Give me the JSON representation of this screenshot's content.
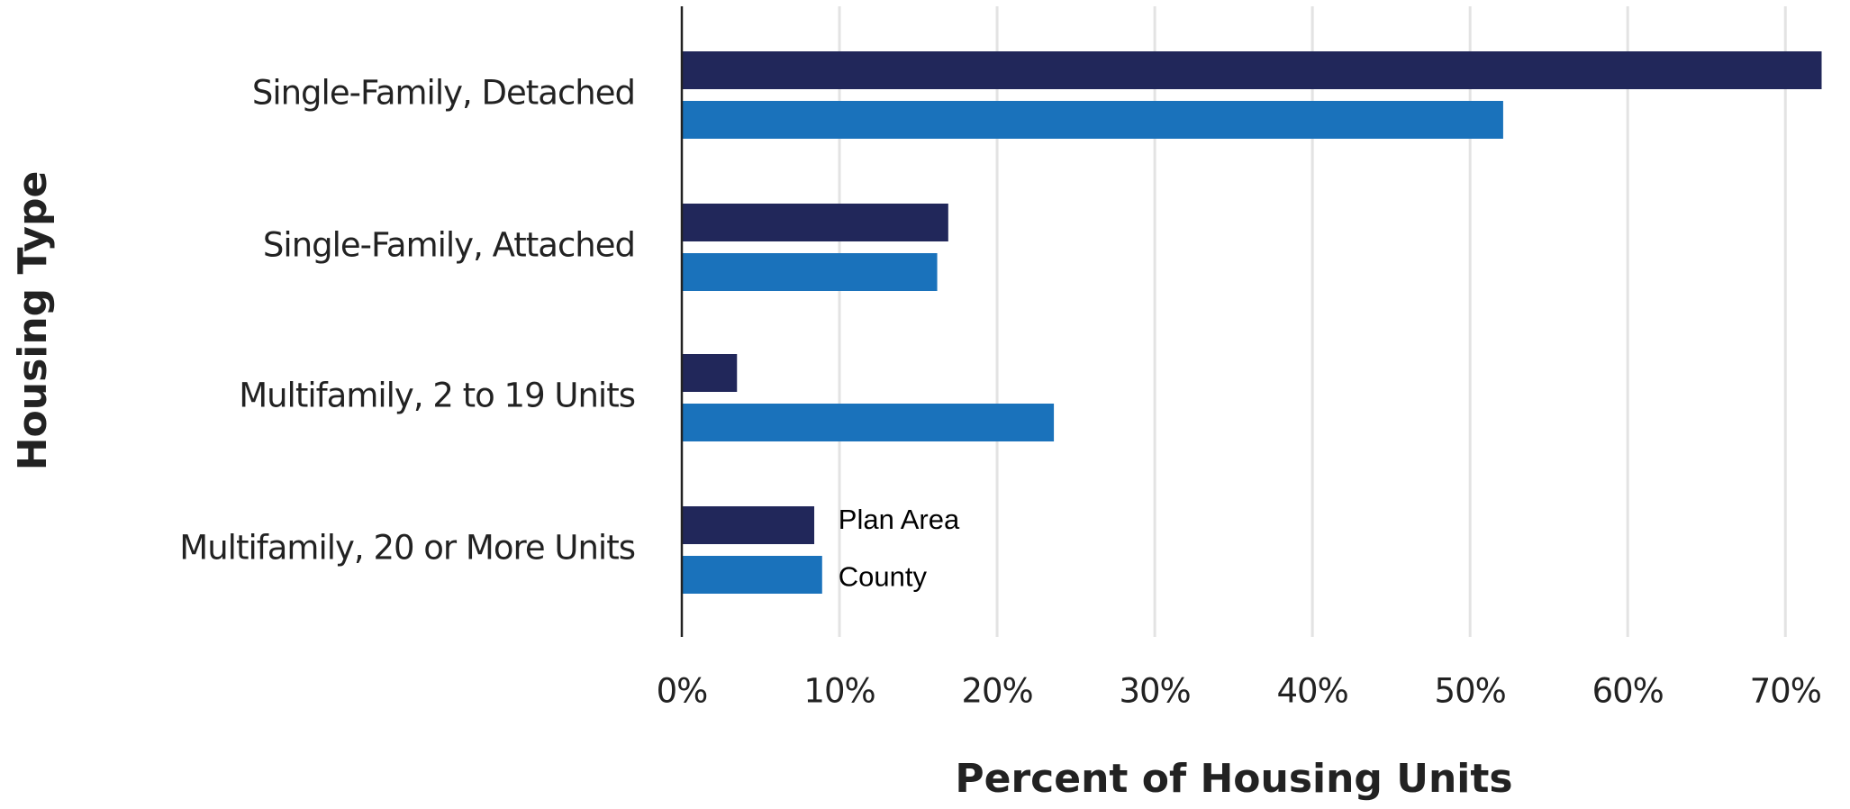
{
  "chart_data": {
    "type": "barh",
    "xlabel": "Percent of Housing Units",
    "ylabel": "Housing Type",
    "categories": [
      "Single-Family, Detached",
      "Single-Family, Attached",
      "Multifamily, 2 to 19 Units",
      "Multifamily, 20 or More Units"
    ],
    "series": [
      {
        "name": "Plan Area",
        "color": "#21275a",
        "values": [
          72.3,
          16.9,
          3.5,
          8.4
        ]
      },
      {
        "name": "County",
        "color": "#1a72bb",
        "values": [
          52.1,
          16.2,
          23.6,
          8.9
        ]
      }
    ],
    "xlim": [
      0,
      72.5
    ],
    "xticks": [
      {
        "value": 0,
        "label": "0%"
      },
      {
        "value": 10,
        "label": "10%"
      },
      {
        "value": 20,
        "label": "20%"
      },
      {
        "value": 30,
        "label": "30%"
      },
      {
        "value": 40,
        "label": "40%"
      },
      {
        "value": 50,
        "label": "50%"
      },
      {
        "value": 60,
        "label": "60%"
      },
      {
        "value": 70,
        "label": "70%"
      }
    ],
    "grid": true
  }
}
